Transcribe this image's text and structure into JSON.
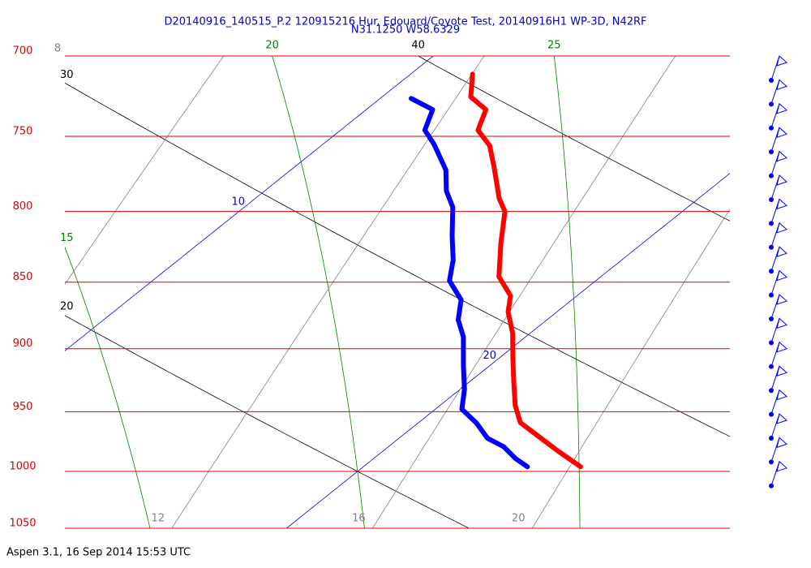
{
  "chart_data": {
    "type": "skewt",
    "title": "D20140916_140515_P.2 120915216 Hur. Edouard/Coyote Test, 20140916H1 WP-3D, N42RF",
    "subtitle": "N31.1250 W58.6329",
    "footer": "Aspen 3.1, 16 Sep 2014  15:53 UTC",
    "title_color": "#0000cc",
    "ylim": [
      1050,
      700
    ],
    "log_y": true,
    "yticks": [
      700,
      750,
      800,
      850,
      900,
      950,
      1000,
      1050
    ],
    "grid": true,
    "grid_color": "#dd0000",
    "xlim": [
      15,
      30
    ],
    "isotherms": {
      "values": [
        10,
        20
      ],
      "color": "#0000ff"
    },
    "dry_adiabats": {
      "values": [
        20,
        30,
        40
      ],
      "color": "#000000"
    },
    "moist_adiabats": {
      "values": [
        15,
        20,
        25
      ],
      "color": "#008000"
    },
    "mixing_ratios": {
      "values": [
        8,
        12,
        16,
        20
      ],
      "color": "#808080"
    },
    "series": [
      {
        "color": "#ff0000",
        "pressure": [
          711,
          725,
          733,
          746,
          756,
          770,
          791,
          800,
          822,
          846,
          860,
          872,
          888,
          907,
          926,
          945,
          959,
          969,
          982,
          996
        ],
        "values": [
          11.4,
          12.0,
          12.7,
          13.1,
          13.8,
          14.5,
          15.5,
          16.0,
          16.8,
          17.7,
          18.5,
          18.9,
          19.6,
          20.3,
          21.0,
          21.7,
          22.3,
          23.0,
          23.9,
          24.9
        ]
      },
      {
        "color": "#0000ff",
        "pressure": [
          726,
          733,
          746,
          755,
          772,
          786,
          797,
          817,
          834,
          849,
          863,
          878,
          891,
          913,
          932,
          948,
          959,
          972,
          979,
          989,
          996
        ],
        "values": [
          10.7,
          11.5,
          11.9,
          12.5,
          13.5,
          14.1,
          14.7,
          15.5,
          16.2,
          16.7,
          17.5,
          18.0,
          18.6,
          19.4,
          20.1,
          20.6,
          21.3,
          22.0,
          22.6,
          23.2,
          23.7
        ]
      }
    ]
  }
}
